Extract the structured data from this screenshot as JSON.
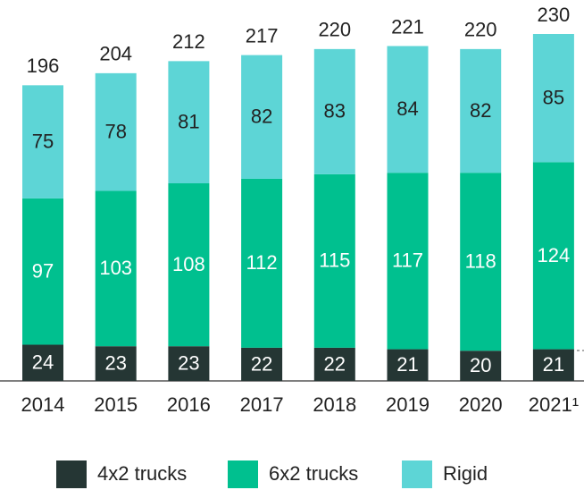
{
  "chart_data": {
    "type": "stacked_bar",
    "categories": [
      "2014",
      "2015",
      "2016",
      "2017",
      "2018",
      "2019",
      "2020",
      "2021¹"
    ],
    "series": [
      {
        "name": "4x2 trucks",
        "color": "#253634",
        "values": [
          24,
          23,
          23,
          22,
          22,
          21,
          20,
          21
        ]
      },
      {
        "name": "6x2 trucks",
        "color": "#00c08f",
        "values": [
          97,
          103,
          108,
          112,
          115,
          117,
          118,
          124
        ]
      },
      {
        "name": "Rigid",
        "color": "#5dd5d6",
        "values": [
          75,
          78,
          81,
          82,
          83,
          84,
          82,
          85
        ]
      }
    ],
    "totals": [
      196,
      204,
      212,
      217,
      220,
      221,
      220,
      230
    ]
  }
}
